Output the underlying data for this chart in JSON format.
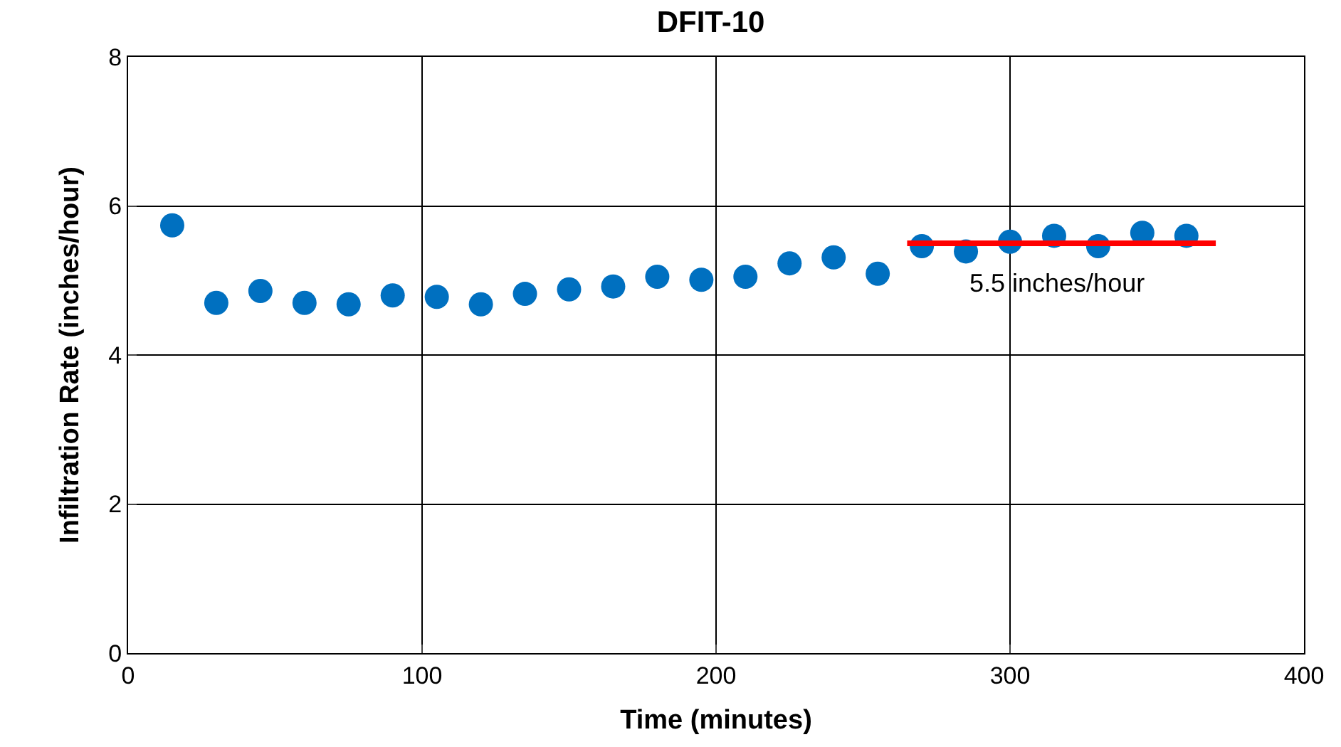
{
  "chart_data": {
    "type": "scatter",
    "title": "DFIT-10",
    "xlabel": "Time (minutes)",
    "ylabel": "Infiltration Rate (inches/hour)",
    "x": [
      15,
      30,
      45,
      60,
      75,
      90,
      105,
      120,
      135,
      150,
      165,
      180,
      195,
      210,
      225,
      240,
      255,
      270,
      285,
      300,
      315,
      330,
      345,
      360
    ],
    "series": [
      {
        "color": "#0070c0",
        "values": [
          5.74,
          4.7,
          4.86,
          4.7,
          4.68,
          4.8,
          4.78,
          4.68,
          4.82,
          4.88,
          4.92,
          5.05,
          5.01,
          5.05,
          5.23,
          5.31,
          5.09,
          5.46,
          5.39,
          5.52,
          5.6,
          5.46,
          5.64,
          5.6
        ]
      },
      {
        "type": "line",
        "color": "#ff0000",
        "marker": "none",
        "x": [
          265,
          370
        ],
        "values": [
          5.5,
          5.5
        ]
      }
    ],
    "annotations": [
      "5.5 inches/hour"
    ],
    "xlim": [
      0,
      400
    ],
    "xticks": [
      0,
      100,
      200,
      300,
      400
    ],
    "ylim": [
      0,
      8
    ],
    "yticks": [
      0,
      2,
      4,
      6,
      8
    ],
    "grid": true,
    "legend": false,
    "marker": "circle"
  }
}
